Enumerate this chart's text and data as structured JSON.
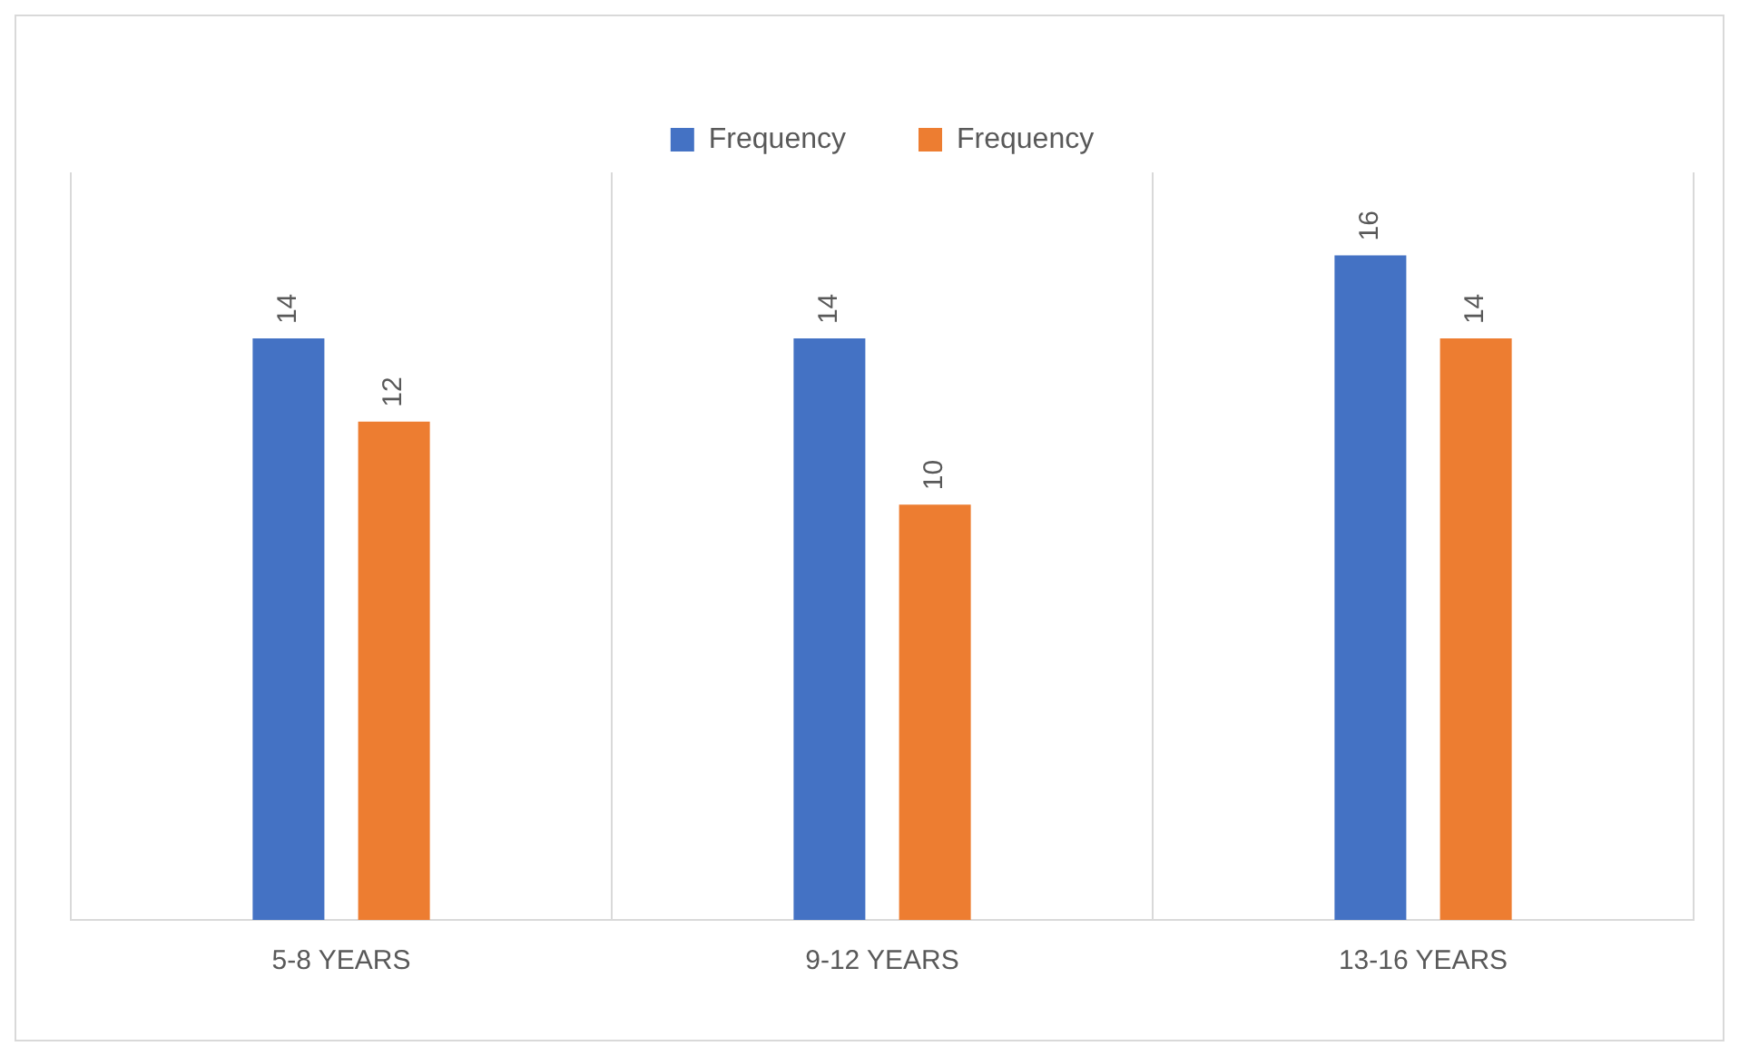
{
  "chart_data": {
    "type": "bar",
    "categories": [
      "5-8 YEARS",
      "9-12 YEARS",
      "13-16 YEARS"
    ],
    "series": [
      {
        "name": "Frequency",
        "color": "#4472c4",
        "values": [
          14,
          14,
          16
        ]
      },
      {
        "name": "Frequency",
        "color": "#ed7d31",
        "values": [
          12,
          10,
          14
        ]
      }
    ],
    "data_labels": true,
    "grid": "x",
    "legend": "top"
  }
}
